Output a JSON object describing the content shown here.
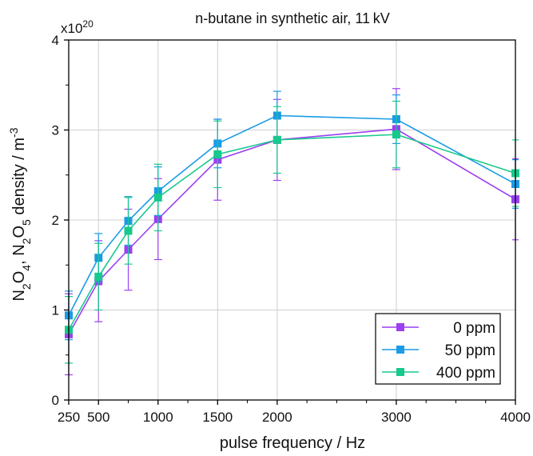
{
  "chart_data": {
    "type": "line",
    "title": "n-butane in synthetic air, 11 kV",
    "xlabel": "pulse frequency / Hz",
    "ylabel_parts": [
      "N",
      "2",
      "O",
      "4",
      ", N",
      "2",
      "O",
      "5",
      " density / m",
      "-3"
    ],
    "y_multiplier": "x10",
    "y_multiplier_exp": "20",
    "xlim": [
      250,
      4000
    ],
    "ylim": [
      0,
      4
    ],
    "x_ticks": [
      250,
      500,
      1000,
      1500,
      2000,
      3000,
      4000
    ],
    "x_tick_labels": [
      "250",
      "500",
      "1000",
      "1500",
      "2000",
      "3000",
      "4000"
    ],
    "y_ticks": [
      0,
      1,
      2,
      3,
      4
    ],
    "y_tick_labels": [
      "0",
      "1",
      "2",
      "3",
      "4"
    ],
    "grid": true,
    "legend_position": "bottom-right",
    "x": [
      250,
      500,
      750,
      1000,
      1500,
      2000,
      3000,
      4000
    ],
    "series": [
      {
        "name": "0 ppm",
        "color": "#9b3ff2",
        "values": [
          0.73,
          1.32,
          1.67,
          2.01,
          2.67,
          2.89,
          3.01,
          2.23
        ],
        "errors": [
          0.45,
          0.45,
          0.45,
          0.45,
          0.45,
          0.45,
          0.45,
          0.45
        ]
      },
      {
        "name": "50 ppm",
        "color": "#1a9be6",
        "values": [
          0.94,
          1.58,
          1.99,
          2.32,
          2.85,
          3.16,
          3.12,
          2.4
        ],
        "errors": [
          0.27,
          0.27,
          0.27,
          0.27,
          0.27,
          0.27,
          0.27,
          0.27
        ]
      },
      {
        "name": "400 ppm",
        "color": "#17c98c",
        "values": [
          0.78,
          1.37,
          1.88,
          2.25,
          2.73,
          2.89,
          2.95,
          2.52
        ],
        "errors": [
          0.37,
          0.37,
          0.37,
          0.37,
          0.37,
          0.37,
          0.37,
          0.37
        ]
      }
    ]
  }
}
